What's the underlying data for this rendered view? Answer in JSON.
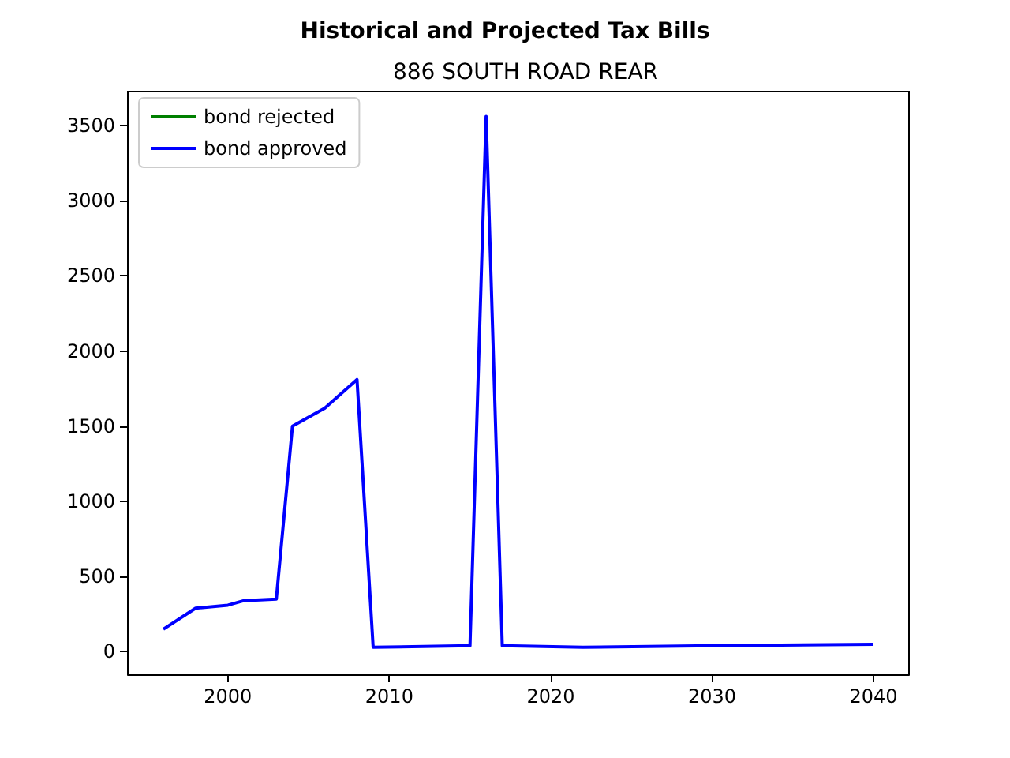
{
  "chart_data": {
    "type": "line",
    "title": "Historical and Projected Tax Bills",
    "subtitle": "886 SOUTH ROAD REAR",
    "xlim": [
      1993.8,
      2042.2
    ],
    "xticks": [
      2000,
      2010,
      2020,
      2030,
      2040
    ],
    "ylim": [
      -150,
      3725
    ],
    "yticks": [
      0,
      500,
      1000,
      1500,
      2000,
      2500,
      3000,
      3500
    ],
    "grid": false,
    "legend": "top left",
    "series": [
      {
        "name": "bond rejected",
        "color": "#008000"
      },
      {
        "name": "bond approved",
        "color": "#0000ff",
        "x": [
          1996,
          1998,
          2000,
          2001,
          2003,
          2004,
          2006,
          2008,
          2009,
          2015,
          2016,
          2017,
          2022,
          2030,
          2040
        ],
        "values": [
          150,
          290,
          310,
          340,
          350,
          1500,
          1620,
          1810,
          30,
          40,
          3560,
          40,
          30,
          40,
          50
        ]
      }
    ]
  }
}
